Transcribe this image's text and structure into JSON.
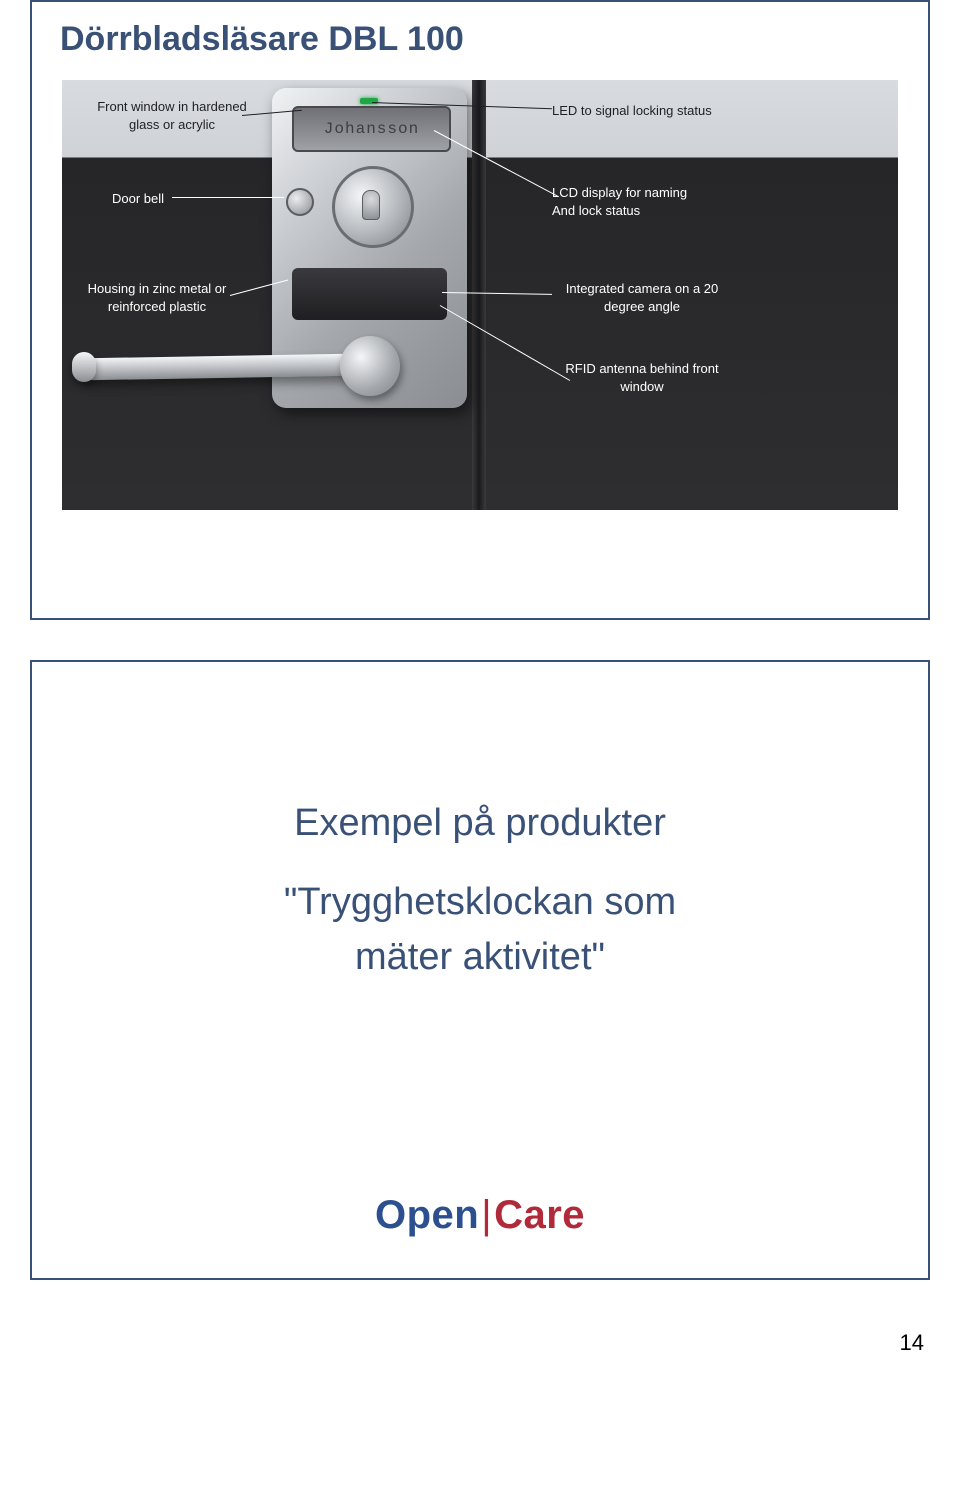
{
  "page": {
    "number": "14"
  },
  "slide1": {
    "title": "Dörrbladsläsare DBL 100",
    "lcd_text": "Johansson",
    "annotations": {
      "front_window": "Front window in hardened\nglass or acrylic",
      "led": "LED to signal locking status",
      "doorbell": "Door bell",
      "lcd_line1": "LCD display for naming",
      "lcd_line2": "And lock status",
      "housing": "Housing in zinc metal or\nreinforced plastic",
      "camera": "Integrated camera on a 20\ndegree angle",
      "rfid": "RFID antenna behind front\nwindow"
    },
    "colors": {
      "title": "#3a5177",
      "border": "#3a5177",
      "led": "#1ea845",
      "annot_light": "#ffffff",
      "annot_dark": "#1f1f26"
    }
  },
  "slide2": {
    "heading": "Exempel på produkter",
    "quote_line1": "\"Trygghetsklockan som",
    "quote_line2": "mäter aktivitet\"",
    "logo_open": "Open",
    "logo_bar": "|",
    "logo_care": "Care",
    "colors": {
      "text": "#3a5177",
      "logo_open": "#2c4f8f",
      "logo_care": "#b02a3a"
    }
  }
}
